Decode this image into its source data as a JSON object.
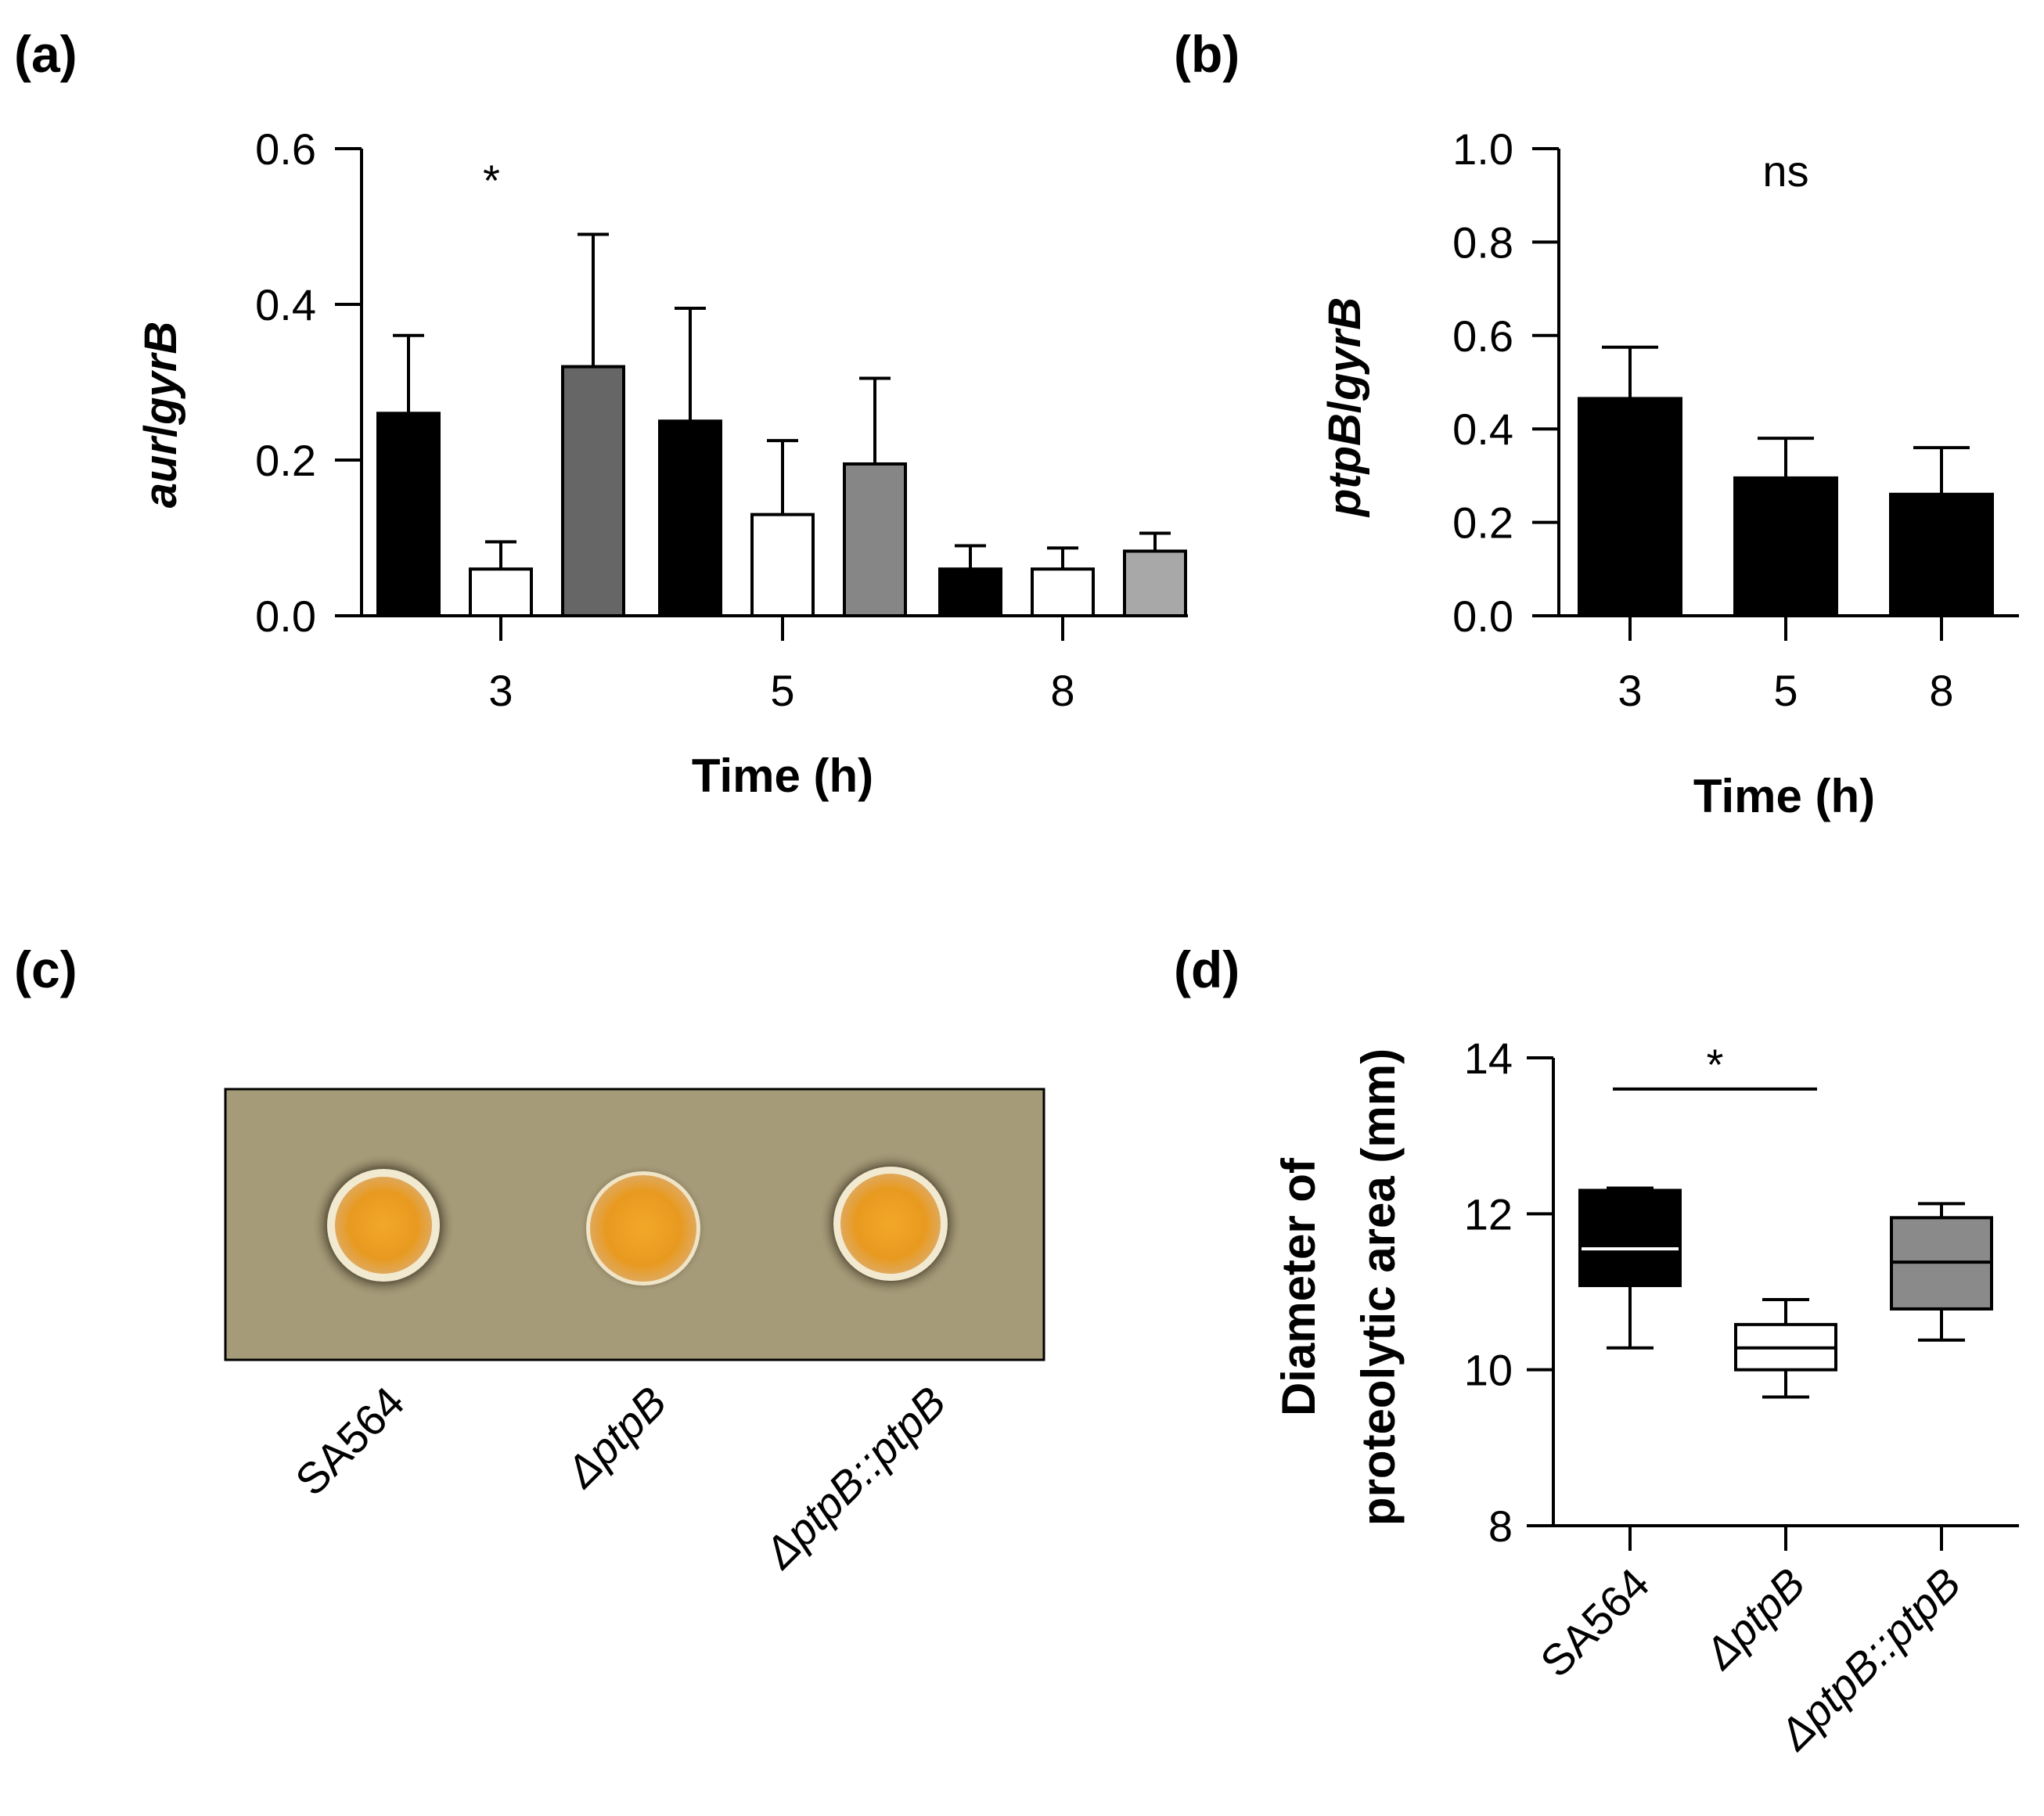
{
  "panels": {
    "a": "(a)",
    "b": "(b)",
    "c": "(c)",
    "d": "(d)"
  },
  "chart_data": [
    {
      "panel": "(a)",
      "type": "bar",
      "xlabel": "Time (h)",
      "ylabel_italic": "aur",
      "ylabel_rest": "/",
      "ylabel_italic2": "gyrB",
      "ylim": [
        0,
        0.6
      ],
      "yticks": [
        "0.0",
        "0.2",
        "0.4",
        "0.6"
      ],
      "yticks_values": [
        0,
        0.2,
        0.4,
        0.6
      ],
      "categories": [
        "3",
        "5",
        "8"
      ],
      "series": [
        {
          "name": "SA564",
          "values": [
            0.26,
            0.25,
            0.06
          ],
          "errors": [
            0.1,
            0.145,
            0.03
          ],
          "colors": [
            "#000000",
            "#000000",
            "#000000"
          ]
        },
        {
          "name": "ΔptpB",
          "values": [
            0.06,
            0.13,
            0.06
          ],
          "errors": [
            0.035,
            0.095,
            0.027
          ],
          "colors": [
            "#ffffff",
            "#ffffff",
            "#ffffff"
          ]
        },
        {
          "name": "ΔptpB::ptpB",
          "values": [
            0.32,
            0.195,
            0.083
          ],
          "errors": [
            0.17,
            0.11,
            0.023
          ],
          "colors": [
            "#666666",
            "#868686",
            "#a8a8a8"
          ]
        }
      ],
      "annotations": [
        {
          "text": "*",
          "category": "3"
        }
      ]
    },
    {
      "panel": "(b)",
      "type": "bar",
      "xlabel": "Time (h)",
      "ylabel_italic": "ptpB",
      "ylabel_rest": "/",
      "ylabel_italic2": "gyrB",
      "ylim": [
        0,
        1.0
      ],
      "yticks": [
        "0.0",
        "0.2",
        "0.4",
        "0.6",
        "0.8",
        "1.0"
      ],
      "yticks_values": [
        0,
        0.2,
        0.4,
        0.6,
        0.8,
        1.0
      ],
      "categories": [
        "3",
        "5",
        "8"
      ],
      "values": [
        0.465,
        0.295,
        0.26
      ],
      "errors": [
        0.11,
        0.085,
        0.1
      ],
      "annotations": [
        {
          "text": "ns"
        }
      ]
    },
    {
      "panel": "(c)",
      "type": "image",
      "strains": [
        "SA564",
        "ΔptpB",
        "ΔptpB::ptpB"
      ]
    },
    {
      "panel": "(d)",
      "type": "box",
      "ylabel_line1": "Diameter of",
      "ylabel_line2": "proteolytic area (mm)",
      "ylim": [
        8,
        14
      ],
      "yticks": [
        "8",
        "10",
        "12",
        "14"
      ],
      "yticks_values": [
        8,
        10,
        12,
        14
      ],
      "categories": [
        "SA564",
        "ΔptpB",
        "ΔptpB::ptpB"
      ],
      "boxes": [
        {
          "min": 10.28,
          "q1": 11.08,
          "median": 11.55,
          "q3": 12.3,
          "max": 12.33,
          "fill": "#000000",
          "line": "#ffffff"
        },
        {
          "min": 9.65,
          "q1": 10.0,
          "median": 10.28,
          "q3": 10.58,
          "max": 10.9,
          "fill": "#ffffff",
          "line": "#000000"
        },
        {
          "min": 10.38,
          "q1": 10.78,
          "median": 11.38,
          "q3": 11.95,
          "max": 12.13,
          "fill": "#8a8a8a",
          "line": "#000000"
        }
      ],
      "significance": {
        "text": "*",
        "from": "SA564",
        "to": "ΔptpB",
        "y": 13.6
      }
    }
  ]
}
